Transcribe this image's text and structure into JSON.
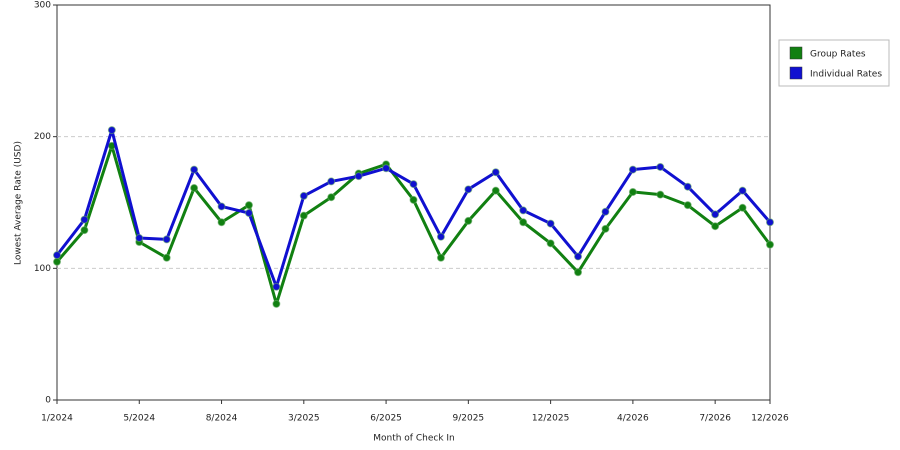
{
  "chart_data": {
    "type": "line",
    "x_label": "Month of Check In",
    "y_label": "Lowest Average Rate (USD)",
    "categories": [
      "1/2024",
      null,
      null,
      "5/2024",
      null,
      null,
      "8/2024",
      null,
      null,
      "3/2025",
      null,
      null,
      "6/2025",
      null,
      null,
      "9/2025",
      null,
      null,
      "12/2025",
      null,
      null,
      "4/2026",
      null,
      null,
      "7/2026",
      null,
      "12/2026"
    ],
    "series": [
      {
        "name": "Group Rates",
        "color": "#118011",
        "values": [
          105,
          129,
          193,
          120,
          108,
          161,
          135,
          148,
          73,
          140,
          154,
          172,
          179,
          152,
          108,
          136,
          159,
          135,
          119,
          97,
          130,
          158,
          156,
          148,
          132,
          146,
          118
        ]
      },
      {
        "name": "Individual Rates",
        "color": "#1010d0",
        "values": [
          110,
          137,
          205,
          123,
          122,
          175,
          147,
          142,
          86,
          155,
          166,
          170,
          176,
          164,
          124,
          160,
          173,
          144,
          134,
          109,
          143,
          175,
          177,
          162,
          141,
          159,
          135
        ]
      }
    ],
    "ylim": [
      0,
      300
    ],
    "yticks": [
      0,
      100,
      200,
      300
    ],
    "grid": true,
    "legend": "right"
  }
}
